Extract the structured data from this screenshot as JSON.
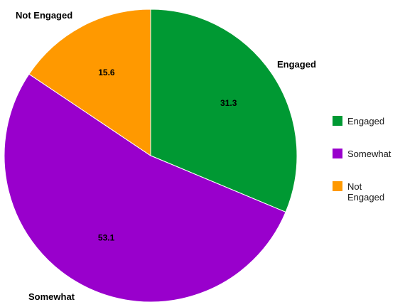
{
  "chart_data": {
    "type": "pie",
    "title": "",
    "start_angle_deg": 0,
    "direction": "clockwise",
    "slices": [
      {
        "label": "Engaged",
        "value": 31.3,
        "color": "#009933",
        "legend_lines": [
          "Engaged"
        ]
      },
      {
        "label": "Somewhat",
        "value": 53.1,
        "color": "#9900cc",
        "legend_lines": [
          "Somewhat"
        ]
      },
      {
        "label": "Not Engaged",
        "value": 15.6,
        "color": "#ff9900",
        "legend_lines": [
          "Not",
          "Engaged"
        ]
      }
    ],
    "legend": {
      "position": "right"
    },
    "data_labels": true,
    "outer_labels": true
  }
}
